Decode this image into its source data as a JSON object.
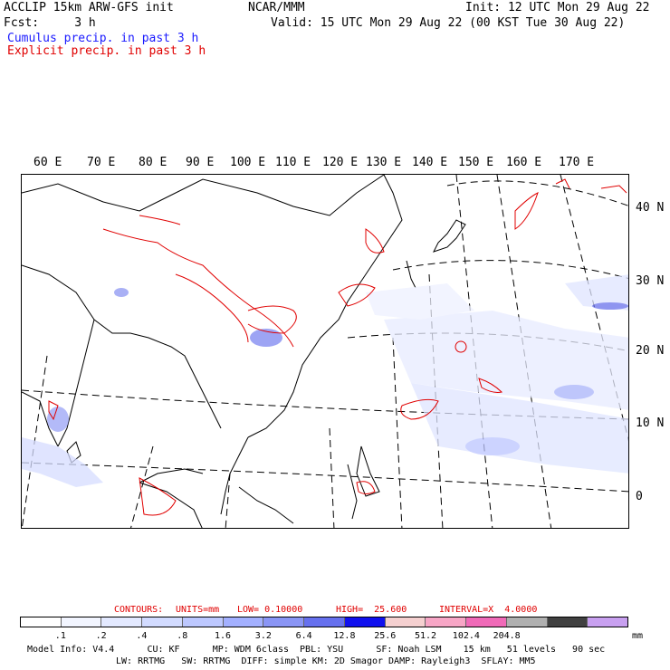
{
  "header": {
    "line1_left": "ACCLIP 15km ARW-GFS init",
    "line1_center": "NCAR/MMM",
    "line1_right": "Init: 12 UTC Mon 29 Aug 22",
    "line2_left": "Fcst:     3 h",
    "line2_right": "Valid: 15 UTC Mon 29 Aug 22 (00 KST Tue 30 Aug 22)",
    "legend_cumulus": "Cumulus precip. in past 3 h",
    "legend_explicit": "Explicit precip. in past 3 h"
  },
  "map": {
    "lon_labels": [
      "60 E",
      "70 E",
      "80 E",
      "90 E",
      "100 E",
      "110 E",
      "120 E",
      "130 E",
      "140 E",
      "150 E",
      "160 E",
      "170 E"
    ],
    "lat_labels": [
      "40 N",
      "30 N",
      "20 N",
      "10 N",
      "0"
    ]
  },
  "contour_info": {
    "contours": "CONTOURS:",
    "units": "UNITS=mm",
    "low": "LOW= 0.10000",
    "high": "HIGH=  25.600",
    "interval": "INTERVAL=X  4.0000"
  },
  "colorbar": {
    "colors": [
      "#ffffff",
      "#f2f5ff",
      "#e3e9ff",
      "#d2dbff",
      "#bdc8ff",
      "#a3b0ff",
      "#8a95f5",
      "#6670ee",
      "#1010ee",
      "#f5d0d0",
      "#f7a6c6",
      "#f06ab8",
      "#b0b0b0",
      "#404040",
      "#c8a0f0"
    ],
    "labels": [
      ".1",
      ".2",
      ".4",
      ".8",
      "1.6",
      "3.2",
      "6.4",
      "12.8",
      "25.6",
      "51.2",
      "102.4",
      "204.8"
    ],
    "units": "mm"
  },
  "footer": {
    "line1": "Model Info: V4.4      CU: KF      MP: WDM 6class  PBL: YSU      SF: Noah LSM    15 km   51 levels   90 sec",
    "line2": "LW: RRTMG   SW: RRTMG  DIFF: simple KM: 2D Smagor DAMP: Rayleigh3  SFLAY: MM5"
  }
}
